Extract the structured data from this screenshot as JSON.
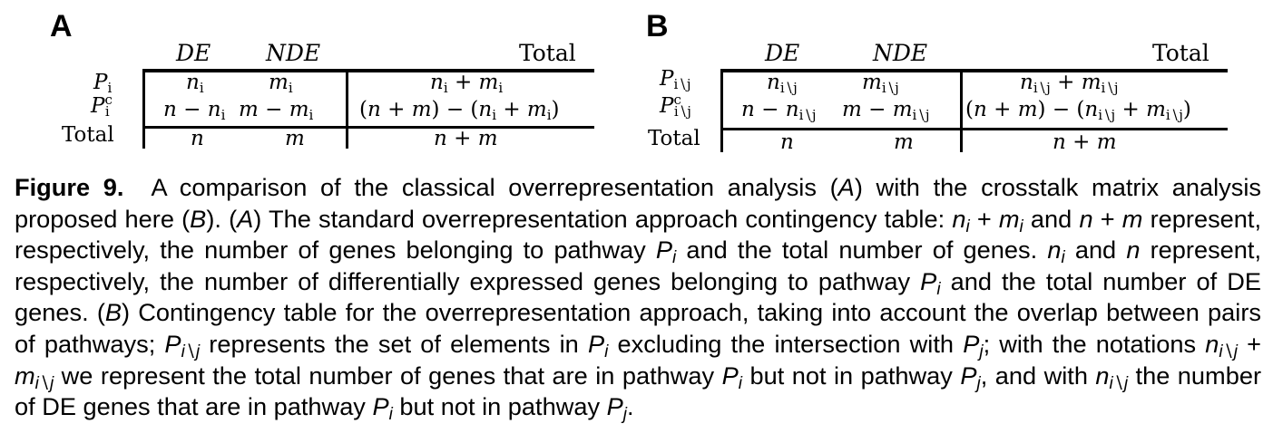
{
  "panels": [
    {
      "letter": "A",
      "columns": [
        "DE",
        "NDE",
        "Total"
      ],
      "rows": [
        {
          "label": "P_i",
          "cells": [
            "n_i",
            "m_i",
            "n_i + m_i"
          ]
        },
        {
          "label": "P_i^c",
          "cells": [
            "n − n_i",
            "m − m_i",
            "(n + m) − (n_i + m_i)"
          ]
        },
        {
          "label": "Total",
          "cells": [
            "n",
            "m",
            "n + m"
          ]
        }
      ]
    },
    {
      "letter": "B",
      "columns": [
        "DE",
        "NDE",
        "Total"
      ],
      "rows": [
        {
          "label": "P_{i\\j}",
          "cells": [
            "n_{i\\j}",
            "m_{i\\j}",
            "n_{i\\j} + m_{i\\j}"
          ]
        },
        {
          "label": "P_{i\\j}^c",
          "cells": [
            "n − n_{i\\j}",
            "m − m_{i\\j}",
            "(n + m) − (n_{i\\j} + m_{i\\j})"
          ]
        },
        {
          "label": "Total",
          "cells": [
            "n",
            "m",
            "n + m"
          ]
        }
      ]
    }
  ],
  "caption": {
    "label": "Figure 9.",
    "p1": "A comparison of the classical overrepresentation analysis (",
    "A": "A",
    "p2": ") with the crosstalk matrix analysis proposed here (",
    "B": "B",
    "p3": "). (",
    "p4": ") The standard overrepresentation approach contingency table: ",
    "n": "n",
    "m": "m",
    "P": "P",
    "i": "i",
    "j": "j",
    "ij": "i∖j",
    "plus": " + ",
    "and": " and ",
    "p5": " represent, respectively, the number of genes belonging to pathway ",
    "p6": " and the total number of genes. ",
    "p7": " represent, respectively, the number of differentially expressed genes belonging to pathway ",
    "p8": " and the total number of DE genes. (",
    "p9": ") Contingency table for the overrepresentation approach, taking into account the overlap between pairs of pathways; ",
    "p10": " represents the set of elements in ",
    "p11": " excluding the intersection with ",
    "p12": "; with the notations ",
    "p13": " we represent the total number of genes that are in pathway ",
    "p14": " but not in pathway ",
    "p15": ", and with ",
    "p16": " the number of DE genes that are in pathway ",
    "p17": "."
  }
}
